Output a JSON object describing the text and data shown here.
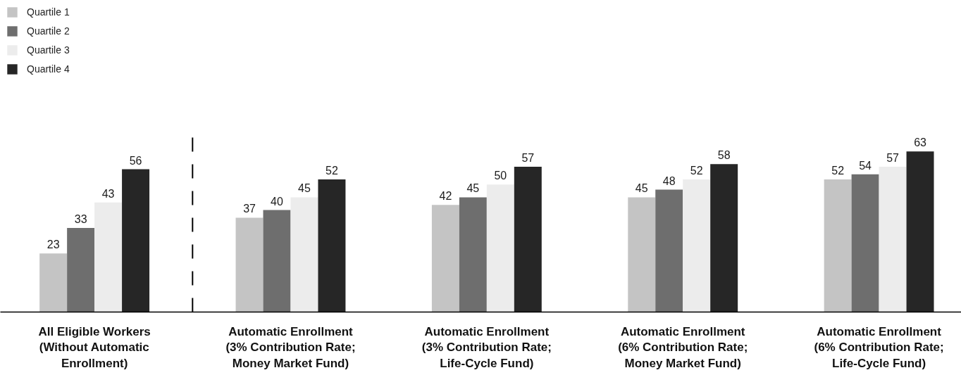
{
  "chart_data": {
    "type": "bar",
    "categories": [
      "All Eligible Workers\n(Without Automatic\nEnrollment)",
      "Automatic Enrollment\n(3% Contribution Rate;\nMoney Market Fund)",
      "Automatic Enrollment\n(3% Contribution Rate;\nLife-Cycle Fund)",
      "Automatic Enrollment\n(6% Contribution Rate;\nMoney Market Fund)",
      "Automatic Enrollment\n(6% Contribution Rate;\nLife-Cycle Fund)"
    ],
    "series": [
      {
        "name": "Quartile 1",
        "color": "#c4c4c4",
        "values": [
          23,
          37,
          42,
          45,
          52
        ]
      },
      {
        "name": "Quartile 2",
        "color": "#6e6e6e",
        "values": [
          33,
          40,
          45,
          48,
          54
        ]
      },
      {
        "name": "Quartile 3",
        "color": "#ececec",
        "values": [
          43,
          45,
          50,
          52,
          57
        ]
      },
      {
        "name": "Quartile 4",
        "color": "#262626",
        "values": [
          56,
          52,
          57,
          58,
          63
        ]
      }
    ],
    "data_labels": true,
    "legend": "top left",
    "tick_labels": "x"
  }
}
